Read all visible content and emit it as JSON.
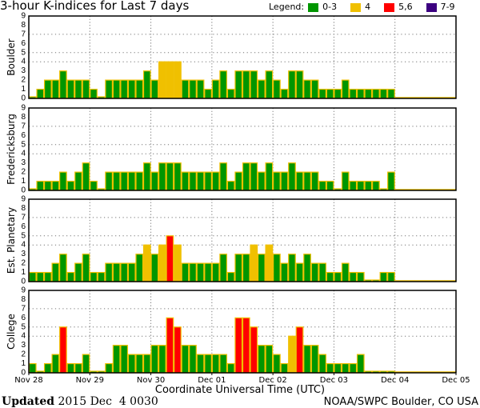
{
  "chart_data": {
    "type": "bar",
    "title": "3-hour K-indices for Last 7 days",
    "xlabel": "Coordinate Universal Time (UTC)",
    "x_ticks": [
      "Nov 28",
      "Nov 29",
      "Nov 30",
      "Dec 01",
      "Dec 02",
      "Dec 03",
      "Dec 04",
      "Dec 05"
    ],
    "y_ticks": [
      "0",
      "1",
      "2",
      "3",
      "4",
      "5",
      "6",
      "7",
      "8",
      "9"
    ],
    "ylim": [
      0,
      9
    ],
    "grid": {
      "horizontal_at": [
        4,
        5,
        7
      ],
      "vertical_at_days": true
    },
    "legend": {
      "label": "Legend:",
      "placement": "top-right",
      "entries": [
        {
          "label": "0-3",
          "color": "#009600"
        },
        {
          "label": "4",
          "color": "#f0c000"
        },
        {
          "label": "5,6",
          "color": "#ff0000"
        },
        {
          "label": "7-9",
          "color": "#3c0080"
        }
      ]
    },
    "outline_color": "#f0c000",
    "interval_hours": 3,
    "series": [
      {
        "name": "Boulder",
        "values": [
          0,
          1,
          2,
          2,
          3,
          2,
          2,
          2,
          1,
          0,
          2,
          2,
          2,
          2,
          2,
          3,
          2,
          4,
          4,
          4,
          2,
          2,
          2,
          1,
          2,
          3,
          1,
          3,
          3,
          3,
          2,
          3,
          2,
          1,
          3,
          3,
          2,
          2,
          1,
          1,
          1,
          2,
          1,
          1,
          1,
          1,
          1,
          1
        ]
      },
      {
        "name": "Fredericksburg",
        "values": [
          0,
          1,
          1,
          1,
          2,
          1,
          2,
          3,
          1,
          0,
          2,
          2,
          2,
          2,
          2,
          3,
          2,
          3,
          3,
          3,
          2,
          2,
          2,
          2,
          2,
          3,
          1,
          2,
          3,
          3,
          2,
          3,
          2,
          2,
          3,
          2,
          2,
          2,
          1,
          1,
          0,
          2,
          1,
          1,
          1,
          1,
          0,
          2
        ]
      },
      {
        "name": "Est. Planetary",
        "values": [
          1,
          1,
          1,
          2,
          3,
          1,
          2,
          3,
          1,
          1,
          2,
          2,
          2,
          2,
          3,
          4,
          3,
          4,
          5,
          4,
          2,
          2,
          2,
          2,
          2,
          3,
          1,
          3,
          3,
          4,
          3,
          4,
          3,
          2,
          3,
          2,
          3,
          2,
          2,
          1,
          1,
          2,
          1,
          1,
          0,
          0,
          1,
          1
        ]
      },
      {
        "name": "College",
        "values": [
          1,
          0,
          1,
          2,
          5,
          1,
          1,
          2,
          0,
          0,
          1,
          3,
          3,
          2,
          2,
          2,
          3,
          3,
          6,
          5,
          3,
          3,
          2,
          2,
          2,
          2,
          1,
          6,
          6,
          5,
          3,
          3,
          2,
          1,
          4,
          5,
          3,
          3,
          2,
          1,
          1,
          1,
          1,
          2,
          0,
          0,
          0,
          0
        ]
      }
    ]
  },
  "footer": {
    "updated_label": "Updated",
    "updated_value": "2015 Dec  4 0030",
    "credit": "NOAA/SWPC Boulder, CO USA"
  }
}
